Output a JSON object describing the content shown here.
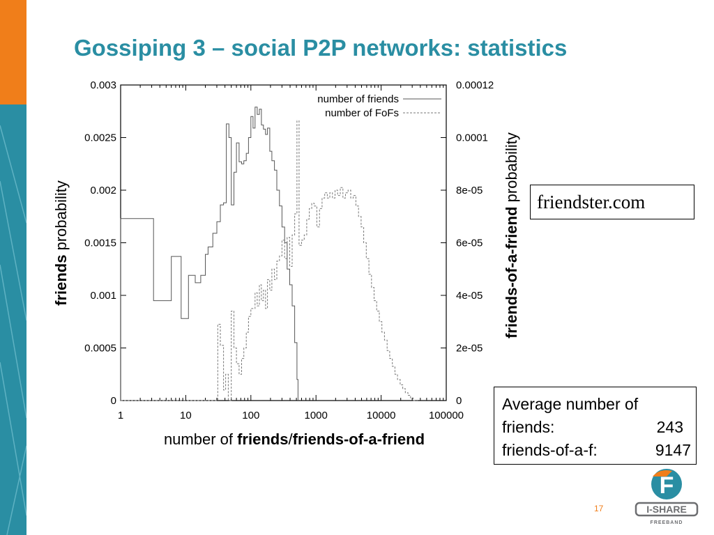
{
  "slide": {
    "title": "Gossiping 3 – social P2P networks: statistics",
    "page_number": "17"
  },
  "site_label": "friendster.com",
  "average_box": {
    "heading": "Average number of",
    "rows": [
      {
        "label": "friends:",
        "value": "243"
      },
      {
        "label": "friends-of-a-f:",
        "value": "9147"
      }
    ]
  },
  "logo": {
    "letter": "F",
    "name": "I-SHARE",
    "sub": "FREEBAND",
    "colors": {
      "orange": "#f07e1a",
      "teal": "#2a8ea3",
      "gray": "#6d6e71"
    }
  },
  "colors": {
    "accent": "#2a8ea3",
    "orange": "#f07e1a"
  },
  "chart_data": {
    "type": "line",
    "x_scale": "log",
    "xlim": [
      1,
      100000
    ],
    "ylim_left": [
      0,
      0.003
    ],
    "ylim_right": [
      0,
      0.00012
    ],
    "x_ticks": [
      "1",
      "10",
      "100",
      "1000",
      "10000",
      "100000"
    ],
    "y_ticks_left": [
      "0",
      "0.0005",
      "0.001",
      "0.0015",
      "0.002",
      "0.0025",
      "0.003"
    ],
    "y_ticks_right": [
      "0",
      "2e-05",
      "4e-05",
      "6e-05",
      "8e-05",
      "0.0001",
      "0.00012"
    ],
    "xlabel": {
      "pre": "number of ",
      "b1": "friends",
      "mid": "/",
      "b2": "friends-of-a-friend"
    },
    "ylabel_left": {
      "bold": "friends",
      "rest": " probability"
    },
    "ylabel_right": {
      "bold": "friends-of-a-friend",
      "rest": " probability"
    },
    "legend_position": "top-right",
    "series": [
      {
        "name": "number of friends",
        "axis": "left",
        "style": "solid",
        "x": [
          1,
          2.5,
          3.2,
          5,
          6,
          7.8,
          8.5,
          9.5,
          11,
          13,
          14,
          17,
          20,
          22,
          26,
          30,
          34,
          38,
          42,
          46,
          50,
          55,
          60,
          66,
          72,
          78,
          85,
          92,
          100,
          108,
          116,
          125,
          135,
          145,
          156,
          168,
          180,
          195,
          210,
          230,
          250,
          275,
          300,
          330,
          360,
          395,
          430,
          470,
          510,
          530
        ],
        "y": [
          0.00173,
          0.00173,
          0.00095,
          0.00095,
          0.00137,
          0.00137,
          0.00078,
          0.00078,
          0.00119,
          0.00119,
          0.00112,
          0.00119,
          0.00139,
          0.00146,
          0.00159,
          0.0017,
          0.00186,
          0.00188,
          0.00263,
          0.0025,
          0.00186,
          0.00217,
          0.00245,
          0.00227,
          0.00225,
          0.00228,
          0.00235,
          0.0025,
          0.0027,
          0.00259,
          0.00279,
          0.00272,
          0.00277,
          0.00262,
          0.00258,
          0.00253,
          0.00259,
          0.00237,
          0.00228,
          0.00219,
          0.002,
          0.00185,
          0.00165,
          0.0015,
          0.00125,
          0.0011,
          0.0009,
          0.00055,
          0.0002,
          0
        ],
        "ends": [
          {
            "x": 1,
            "y": 0
          },
          {
            "x": 530,
            "y": 0
          }
        ]
      },
      {
        "name": "number of FoFs",
        "axis": "right",
        "style": "dashed",
        "x": [
          1,
          30,
          31,
          34,
          38,
          41,
          45,
          50,
          55,
          60,
          66,
          72,
          78,
          85,
          92,
          100,
          108,
          116,
          125,
          135,
          145,
          156,
          168,
          180,
          195,
          210,
          230,
          250,
          275,
          300,
          330,
          360,
          395,
          430,
          470,
          510,
          550,
          600,
          660,
          720,
          790,
          860,
          940,
          1030,
          1130,
          1240,
          1360,
          1490,
          1630,
          1790,
          1960,
          2150,
          2360,
          2590,
          2840,
          3110,
          3410,
          3740,
          4100,
          4500,
          4930,
          5400,
          5920,
          6490,
          7120,
          7800,
          8550,
          9380,
          10280,
          11270,
          12360,
          13550,
          14860,
          16290,
          17860,
          19580,
          21470,
          23540,
          25810,
          28300,
          31000,
          34000,
          36000
        ],
        "y": [
          0,
          0,
          2.9e-05,
          2.1e-05,
          4e-06,
          1e-05,
          0,
          3.4e-05,
          2e-05,
          1.4e-05,
          1e-05,
          1.6e-05,
          2e-05,
          2.6e-05,
          3.2e-05,
          3.5e-05,
          3.5e-05,
          4.1e-05,
          3.6e-05,
          4.4e-05,
          3.8e-05,
          4.2e-05,
          3.5e-05,
          4.6e-05,
          4.2e-05,
          5e-05,
          4.6e-05,
          5.3e-05,
          5.5e-05,
          6.1e-05,
          5.4e-05,
          6.2e-05,
          5.1e-05,
          6.3e-05,
          7.1e-05,
          0.000111,
          5.9e-05,
          6.1e-05,
          6.3e-05,
          6.9e-05,
          7.3e-05,
          7.5e-05,
          7.4e-05,
          6.6e-05,
          7.3e-05,
          7.7e-05,
          7.9e-05,
          7.7e-05,
          7.9e-05,
          7.7e-05,
          8e-05,
          7.8e-05,
          8.1e-05,
          7.7e-05,
          7.9e-05,
          8e-05,
          7.7e-05,
          7.8e-05,
          7.4e-05,
          7e-05,
          6.6e-05,
          6e-05,
          5.4e-05,
          4.8e-05,
          4.3e-05,
          3.8e-05,
          3.4e-05,
          3e-05,
          2.6e-05,
          2.3e-05,
          1.9e-05,
          1.6e-05,
          1.3e-05,
          1e-05,
          8e-06,
          6e-06,
          4.5e-06,
          3e-06,
          2e-06,
          1e-06,
          0,
          0,
          0
        ]
      }
    ]
  }
}
